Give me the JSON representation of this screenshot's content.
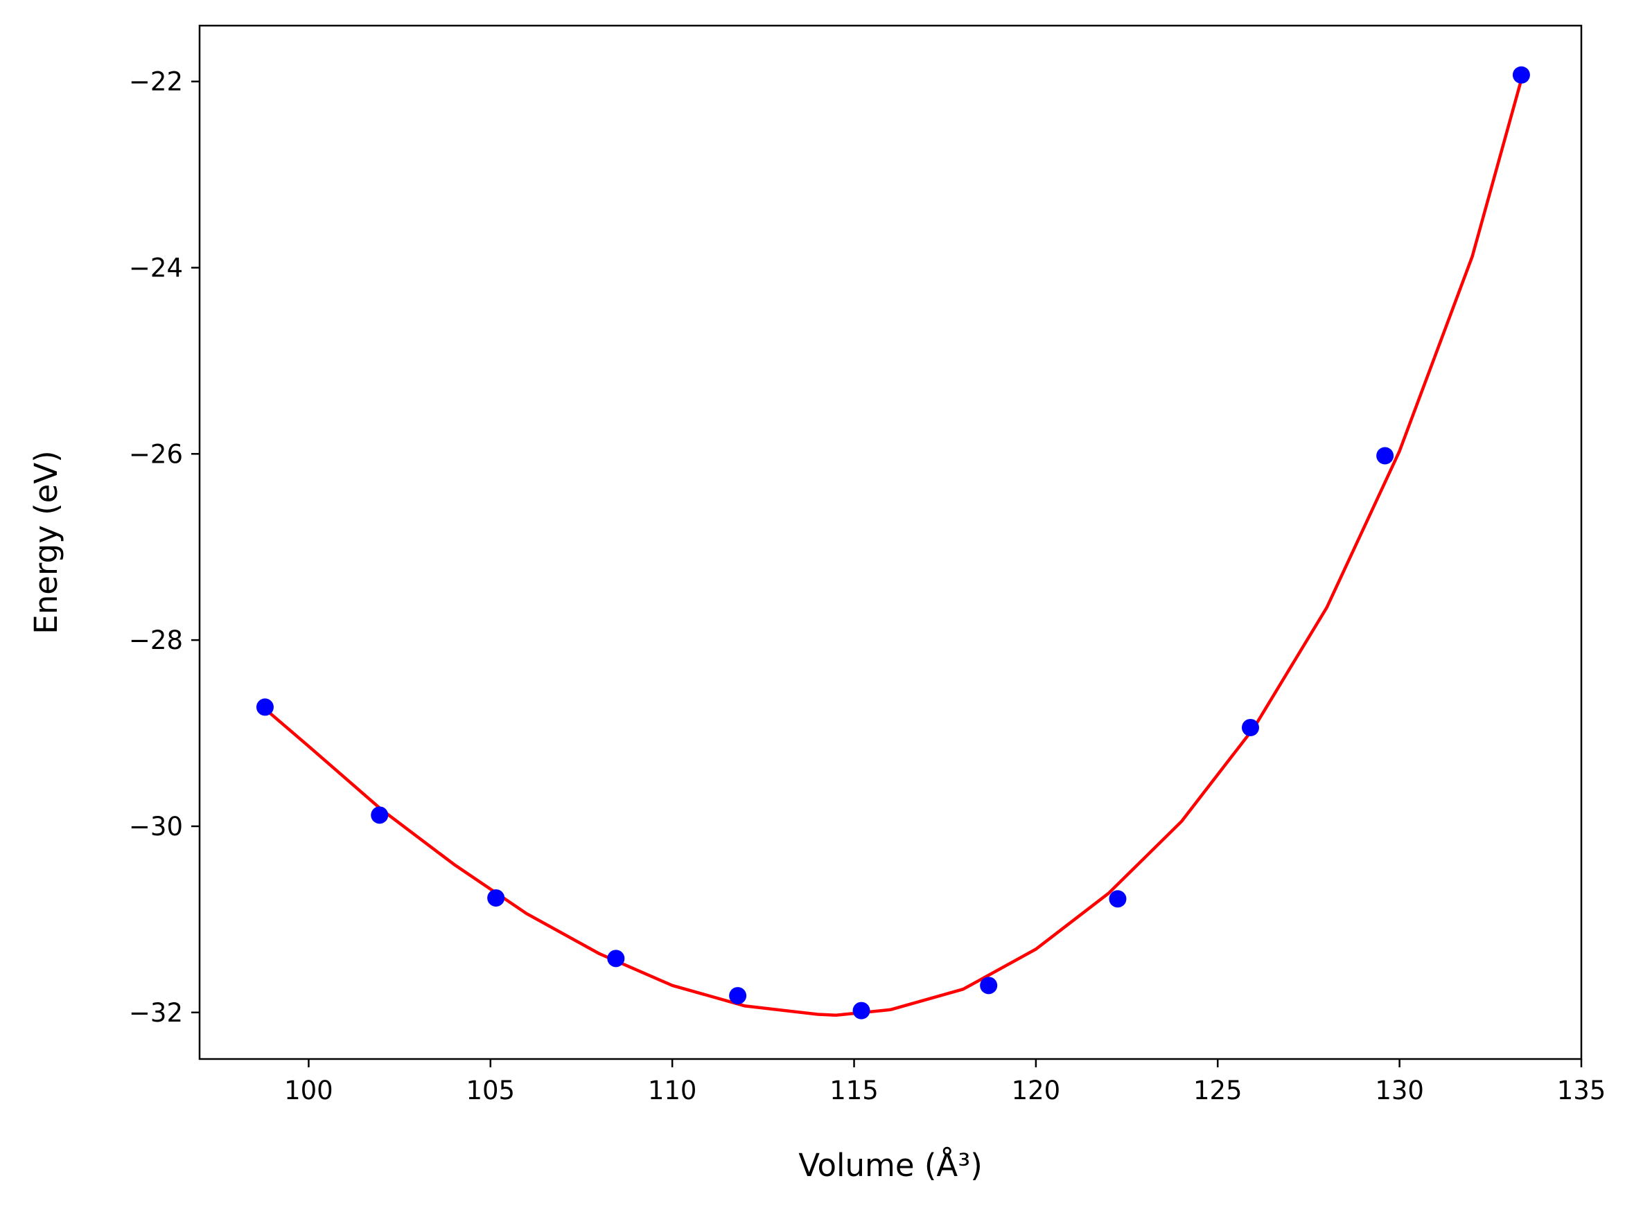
{
  "chart_data": {
    "type": "scatter",
    "xlabel": "Volume (Å³)",
    "ylabel": "Energy (eV)",
    "xlim": [
      97,
      135
    ],
    "ylim": [
      -32.5,
      -21.4
    ],
    "x_ticks": [
      100,
      105,
      110,
      115,
      120,
      125,
      130,
      135
    ],
    "y_ticks": [
      -32,
      -30,
      -28,
      -26,
      -24,
      -22
    ],
    "x_tick_labels": [
      "100",
      "105",
      "110",
      "115",
      "120",
      "125",
      "130",
      "135"
    ],
    "y_tick_labels": [
      "−32",
      "−30",
      "−28",
      "−26",
      "−24",
      "−22"
    ],
    "grid": false,
    "series": [
      {
        "kind": "points",
        "color": "#0000ff",
        "x": [
          98.8,
          101.95,
          105.15,
          108.45,
          111.8,
          115.2,
          118.7,
          122.25,
          125.9,
          129.6,
          133.35
        ],
        "y": [
          -28.72,
          -29.88,
          -30.77,
          -31.42,
          -31.82,
          -31.98,
          -31.71,
          -30.78,
          -28.94,
          -26.02,
          -21.93
        ]
      },
      {
        "kind": "fit",
        "color": "#ff0000",
        "x": [
          98.8,
          100,
          102,
          104,
          106,
          108,
          110,
          112,
          114,
          114.5,
          116,
          118,
          120,
          122,
          124,
          126,
          128,
          130,
          132,
          133.35
        ],
        "y": [
          -28.74,
          -29.14,
          -29.82,
          -30.41,
          -30.94,
          -31.37,
          -31.71,
          -31.93,
          -32.02,
          -32.03,
          -31.97,
          -31.75,
          -31.32,
          -30.72,
          -29.95,
          -28.94,
          -27.65,
          -25.97,
          -23.88,
          -21.98
        ]
      }
    ]
  }
}
